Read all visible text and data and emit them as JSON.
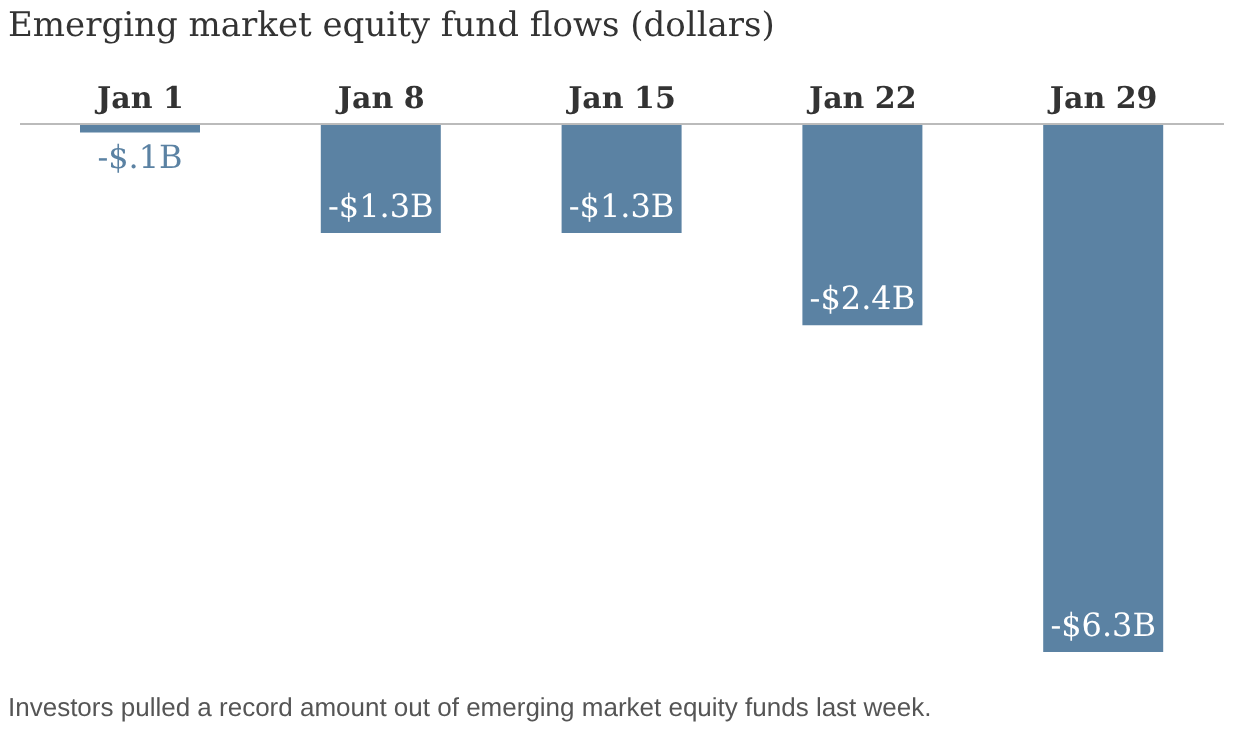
{
  "chart_data": {
    "type": "bar",
    "title": "Emerging market equity fund flows (dollars)",
    "categories": [
      "Jan 1",
      "Jan 8",
      "Jan 15",
      "Jan 22",
      "Jan 29"
    ],
    "values": [
      -0.1,
      -1.3,
      -1.3,
      -2.4,
      -6.3
    ],
    "value_labels": [
      "-$.1B",
      "-$1.3B",
      "-$1.3B",
      "-$2.4B",
      "-$6.3B"
    ],
    "color": "#5b82a3",
    "annotations": [
      "Investors pulled a record amount out of emerging market equity funds last week."
    ]
  }
}
